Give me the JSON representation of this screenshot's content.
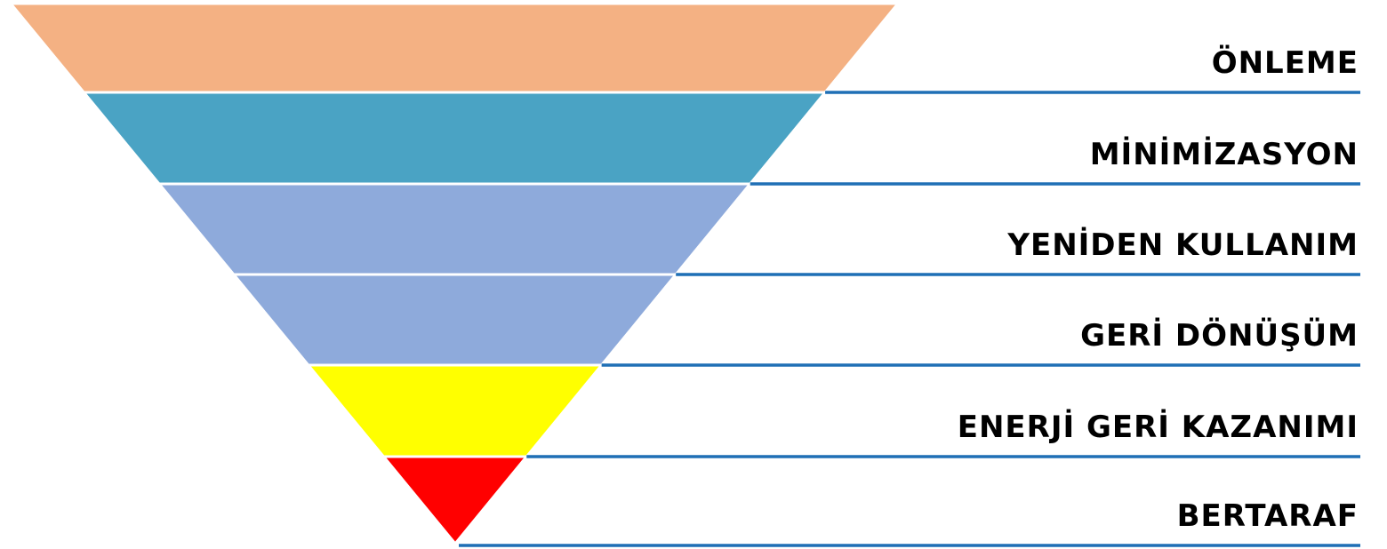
{
  "hierarchy": {
    "tiers": [
      {
        "label": "ÖNLEME",
        "color": "#f4b183"
      },
      {
        "label": "MİNİMİZASYON",
        "color": "#4aa3c4"
      },
      {
        "label": "YENİDEN KULLANIM",
        "color": "#8eaadb"
      },
      {
        "label": "GERİ DÖNÜŞÜM",
        "color": "#8eaadb"
      },
      {
        "label": "ENERJİ GERİ KAZANIMI",
        "color": "#ffff00"
      },
      {
        "label": "BERTARAF",
        "color": "#ff0000"
      }
    ],
    "line_color": "#1f6fb5"
  }
}
